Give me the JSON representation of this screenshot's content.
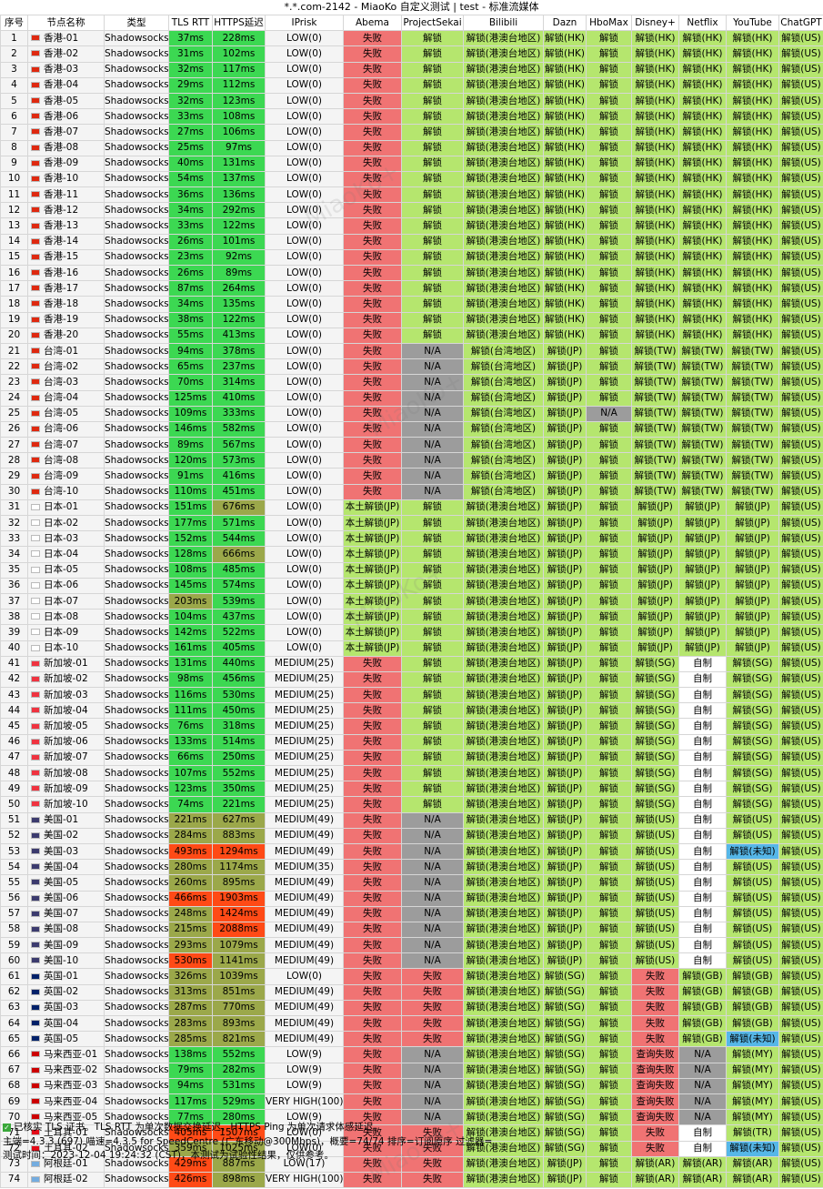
{
  "title": "*.*.com-2142 - MiaoKo 自定义测试 | test - 标准流媒体",
  "watermark": "MiaoKo+",
  "headers": [
    "序号",
    "节点名称",
    "类型",
    "TLS RTT",
    "HTTPS延迟",
    "IPrisk",
    "Abema",
    "ProjectSekai",
    "Bilibili",
    "Dazn",
    "HboMax",
    "Disney+",
    "Netflix",
    "YouTube",
    "ChatGPT"
  ],
  "colors": {
    "fail": "#f07373",
    "ok": "#b5e66e",
    "na": "#9c9c9c",
    "self": "#ffffff",
    "unknown": "#56b7e8",
    "rtt_green": "#3cd852",
    "rtt_olive": "#9ba84a",
    "rtt_red": "#ff4a16",
    "neutral": "#f4f4f4"
  },
  "flags": {
    "hk": "#de2910",
    "tw": "#de2910",
    "jp": "#ffffff",
    "sg": "#ef3340",
    "us": "#3c3b6e",
    "uk": "#012169",
    "my": "#cc0001",
    "tr": "#e30a17",
    "ar": "#74acdf"
  },
  "rows": [
    [
      "1",
      "hk",
      "香港-01",
      "Shadowsocks",
      "37ms",
      "228ms",
      "LOW(0)",
      "失败",
      "解锁",
      "解锁(港澳台地区)",
      "解锁(HK)",
      "解锁",
      "解锁(HK)",
      "解锁(HK)",
      "解锁(HK)",
      "解锁(US)"
    ],
    [
      "2",
      "hk",
      "香港-02",
      "Shadowsocks",
      "31ms",
      "102ms",
      "LOW(0)",
      "失败",
      "解锁",
      "解锁(港澳台地区)",
      "解锁(HK)",
      "解锁",
      "解锁(HK)",
      "解锁(HK)",
      "解锁(HK)",
      "解锁(US)"
    ],
    [
      "3",
      "hk",
      "香港-03",
      "Shadowsocks",
      "32ms",
      "117ms",
      "LOW(0)",
      "失败",
      "解锁",
      "解锁(港澳台地区)",
      "解锁(HK)",
      "解锁",
      "解锁(HK)",
      "解锁(HK)",
      "解锁(HK)",
      "解锁(US)"
    ],
    [
      "4",
      "hk",
      "香港-04",
      "Shadowsocks",
      "29ms",
      "112ms",
      "LOW(0)",
      "失败",
      "解锁",
      "解锁(港澳台地区)",
      "解锁(HK)",
      "解锁",
      "解锁(HK)",
      "解锁(HK)",
      "解锁(HK)",
      "解锁(US)"
    ],
    [
      "5",
      "hk",
      "香港-05",
      "Shadowsocks",
      "32ms",
      "123ms",
      "LOW(0)",
      "失败",
      "解锁",
      "解锁(港澳台地区)",
      "解锁(HK)",
      "解锁",
      "解锁(HK)",
      "解锁(HK)",
      "解锁(HK)",
      "解锁(US)"
    ],
    [
      "6",
      "hk",
      "香港-06",
      "Shadowsocks",
      "33ms",
      "108ms",
      "LOW(0)",
      "失败",
      "解锁",
      "解锁(港澳台地区)",
      "解锁(HK)",
      "解锁",
      "解锁(HK)",
      "解锁(HK)",
      "解锁(HK)",
      "解锁(US)"
    ],
    [
      "7",
      "hk",
      "香港-07",
      "Shadowsocks",
      "27ms",
      "106ms",
      "LOW(0)",
      "失败",
      "解锁",
      "解锁(港澳台地区)",
      "解锁(HK)",
      "解锁",
      "解锁(HK)",
      "解锁(HK)",
      "解锁(HK)",
      "解锁(US)"
    ],
    [
      "8",
      "hk",
      "香港-08",
      "Shadowsocks",
      "25ms",
      "97ms",
      "LOW(0)",
      "失败",
      "解锁",
      "解锁(港澳台地区)",
      "解锁(HK)",
      "解锁",
      "解锁(HK)",
      "解锁(HK)",
      "解锁(HK)",
      "解锁(US)"
    ],
    [
      "9",
      "hk",
      "香港-09",
      "Shadowsocks",
      "40ms",
      "131ms",
      "LOW(0)",
      "失败",
      "解锁",
      "解锁(港澳台地区)",
      "解锁(HK)",
      "解锁",
      "解锁(HK)",
      "解锁(HK)",
      "解锁(HK)",
      "解锁(US)"
    ],
    [
      "10",
      "hk",
      "香港-10",
      "Shadowsocks",
      "54ms",
      "137ms",
      "LOW(0)",
      "失败",
      "解锁",
      "解锁(港澳台地区)",
      "解锁(HK)",
      "解锁",
      "解锁(HK)",
      "解锁(HK)",
      "解锁(HK)",
      "解锁(US)"
    ],
    [
      "11",
      "hk",
      "香港-11",
      "Shadowsocks",
      "36ms",
      "136ms",
      "LOW(0)",
      "失败",
      "解锁",
      "解锁(港澳台地区)",
      "解锁(HK)",
      "解锁",
      "解锁(HK)",
      "解锁(HK)",
      "解锁(HK)",
      "解锁(US)"
    ],
    [
      "12",
      "hk",
      "香港-12",
      "Shadowsocks",
      "34ms",
      "292ms",
      "LOW(0)",
      "失败",
      "解锁",
      "解锁(港澳台地区)",
      "解锁(HK)",
      "解锁",
      "解锁(HK)",
      "解锁(HK)",
      "解锁(HK)",
      "解锁(US)"
    ],
    [
      "13",
      "hk",
      "香港-13",
      "Shadowsocks",
      "33ms",
      "122ms",
      "LOW(0)",
      "失败",
      "解锁",
      "解锁(港澳台地区)",
      "解锁(HK)",
      "解锁",
      "解锁(HK)",
      "解锁(HK)",
      "解锁(HK)",
      "解锁(US)"
    ],
    [
      "14",
      "hk",
      "香港-14",
      "Shadowsocks",
      "26ms",
      "101ms",
      "LOW(0)",
      "失败",
      "解锁",
      "解锁(港澳台地区)",
      "解锁(HK)",
      "解锁",
      "解锁(HK)",
      "解锁(HK)",
      "解锁(HK)",
      "解锁(US)"
    ],
    [
      "15",
      "hk",
      "香港-15",
      "Shadowsocks",
      "23ms",
      "92ms",
      "LOW(0)",
      "失败",
      "解锁",
      "解锁(港澳台地区)",
      "解锁(HK)",
      "解锁",
      "解锁(HK)",
      "解锁(HK)",
      "解锁(HK)",
      "解锁(US)"
    ],
    [
      "16",
      "hk",
      "香港-16",
      "Shadowsocks",
      "26ms",
      "89ms",
      "LOW(0)",
      "失败",
      "解锁",
      "解锁(港澳台地区)",
      "解锁(HK)",
      "解锁",
      "解锁(HK)",
      "解锁(HK)",
      "解锁(HK)",
      "解锁(US)"
    ],
    [
      "17",
      "hk",
      "香港-17",
      "Shadowsocks",
      "87ms",
      "264ms",
      "LOW(0)",
      "失败",
      "解锁",
      "解锁(港澳台地区)",
      "解锁(HK)",
      "解锁",
      "解锁(HK)",
      "解锁(HK)",
      "解锁(HK)",
      "解锁(US)"
    ],
    [
      "18",
      "hk",
      "香港-18",
      "Shadowsocks",
      "34ms",
      "135ms",
      "LOW(0)",
      "失败",
      "解锁",
      "解锁(港澳台地区)",
      "解锁(HK)",
      "解锁",
      "解锁(HK)",
      "解锁(HK)",
      "解锁(HK)",
      "解锁(US)"
    ],
    [
      "19",
      "hk",
      "香港-19",
      "Shadowsocks",
      "38ms",
      "122ms",
      "LOW(0)",
      "失败",
      "解锁",
      "解锁(港澳台地区)",
      "解锁(HK)",
      "解锁",
      "解锁(HK)",
      "解锁(HK)",
      "解锁(HK)",
      "解锁(US)"
    ],
    [
      "20",
      "hk",
      "香港-20",
      "Shadowsocks",
      "55ms",
      "413ms",
      "LOW(0)",
      "失败",
      "解锁",
      "解锁(港澳台地区)",
      "解锁(HK)",
      "解锁",
      "解锁(HK)",
      "解锁(HK)",
      "解锁(HK)",
      "解锁(US)"
    ],
    [
      "21",
      "tw",
      "台湾-01",
      "Shadowsocks",
      "94ms",
      "378ms",
      "LOW(0)",
      "失败",
      "N/A",
      "解锁(台湾地区)",
      "解锁(JP)",
      "解锁",
      "解锁(TW)",
      "解锁(TW)",
      "解锁(TW)",
      "解锁(US)"
    ],
    [
      "22",
      "tw",
      "台湾-02",
      "Shadowsocks",
      "65ms",
      "237ms",
      "LOW(0)",
      "失败",
      "N/A",
      "解锁(台湾地区)",
      "解锁(JP)",
      "解锁",
      "解锁(TW)",
      "解锁(TW)",
      "解锁(TW)",
      "解锁(US)"
    ],
    [
      "23",
      "tw",
      "台湾-03",
      "Shadowsocks",
      "70ms",
      "314ms",
      "LOW(0)",
      "失败",
      "N/A",
      "解锁(台湾地区)",
      "解锁(JP)",
      "解锁",
      "解锁(TW)",
      "解锁(TW)",
      "解锁(TW)",
      "解锁(US)"
    ],
    [
      "24",
      "tw",
      "台湾-04",
      "Shadowsocks",
      "125ms",
      "410ms",
      "LOW(0)",
      "失败",
      "N/A",
      "解锁(台湾地区)",
      "解锁(JP)",
      "解锁",
      "解锁(TW)",
      "解锁(TW)",
      "解锁(TW)",
      "解锁(US)"
    ],
    [
      "25",
      "tw",
      "台湾-05",
      "Shadowsocks",
      "109ms",
      "333ms",
      "LOW(0)",
      "失败",
      "N/A",
      "解锁(台湾地区)",
      "解锁(JP)",
      "N/A",
      "解锁(TW)",
      "解锁(TW)",
      "解锁(TW)",
      "解锁(US)"
    ],
    [
      "26",
      "tw",
      "台湾-06",
      "Shadowsocks",
      "146ms",
      "582ms",
      "LOW(0)",
      "失败",
      "N/A",
      "解锁(台湾地区)",
      "解锁(JP)",
      "解锁",
      "解锁(TW)",
      "解锁(TW)",
      "解锁(TW)",
      "解锁(US)"
    ],
    [
      "27",
      "tw",
      "台湾-07",
      "Shadowsocks",
      "89ms",
      "567ms",
      "LOW(0)",
      "失败",
      "N/A",
      "解锁(台湾地区)",
      "解锁(JP)",
      "解锁",
      "解锁(TW)",
      "解锁(TW)",
      "解锁(TW)",
      "解锁(US)"
    ],
    [
      "28",
      "tw",
      "台湾-08",
      "Shadowsocks",
      "120ms",
      "573ms",
      "LOW(0)",
      "失败",
      "N/A",
      "解锁(台湾地区)",
      "解锁(JP)",
      "解锁",
      "解锁(TW)",
      "解锁(TW)",
      "解锁(TW)",
      "解锁(US)"
    ],
    [
      "29",
      "tw",
      "台湾-09",
      "Shadowsocks",
      "91ms",
      "416ms",
      "LOW(0)",
      "失败",
      "N/A",
      "解锁(台湾地区)",
      "解锁(JP)",
      "解锁",
      "解锁(TW)",
      "解锁(TW)",
      "解锁(TW)",
      "解锁(US)"
    ],
    [
      "30",
      "tw",
      "台湾-10",
      "Shadowsocks",
      "110ms",
      "451ms",
      "LOW(0)",
      "失败",
      "N/A",
      "解锁(台湾地区)",
      "解锁(JP)",
      "解锁",
      "解锁(TW)",
      "解锁(TW)",
      "解锁(TW)",
      "解锁(US)"
    ],
    [
      "31",
      "jp",
      "日本-01",
      "Shadowsocks",
      "151ms",
      "676ms",
      "LOW(0)",
      "本土解锁(JP)",
      "解锁",
      "解锁(港澳台地区)",
      "解锁(JP)",
      "解锁",
      "解锁(JP)",
      "解锁(JP)",
      "解锁(JP)",
      "解锁(US)"
    ],
    [
      "32",
      "jp",
      "日本-02",
      "Shadowsocks",
      "177ms",
      "571ms",
      "LOW(0)",
      "本土解锁(JP)",
      "解锁",
      "解锁(港澳台地区)",
      "解锁(JP)",
      "解锁",
      "解锁(JP)",
      "解锁(JP)",
      "解锁(JP)",
      "解锁(US)"
    ],
    [
      "33",
      "jp",
      "日本-03",
      "Shadowsocks",
      "152ms",
      "544ms",
      "LOW(0)",
      "本土解锁(JP)",
      "解锁",
      "解锁(港澳台地区)",
      "解锁(JP)",
      "解锁",
      "解锁(JP)",
      "解锁(JP)",
      "解锁(JP)",
      "解锁(US)"
    ],
    [
      "34",
      "jp",
      "日本-04",
      "Shadowsocks",
      "128ms",
      "666ms",
      "LOW(0)",
      "本土解锁(JP)",
      "解锁",
      "解锁(港澳台地区)",
      "解锁(JP)",
      "解锁",
      "解锁(JP)",
      "解锁(JP)",
      "解锁(JP)",
      "解锁(US)"
    ],
    [
      "35",
      "jp",
      "日本-05",
      "Shadowsocks",
      "108ms",
      "485ms",
      "LOW(0)",
      "本土解锁(JP)",
      "解锁",
      "解锁(港澳台地区)",
      "解锁(JP)",
      "解锁",
      "解锁(JP)",
      "解锁(JP)",
      "解锁(JP)",
      "解锁(US)"
    ],
    [
      "36",
      "jp",
      "日本-06",
      "Shadowsocks",
      "145ms",
      "574ms",
      "LOW(0)",
      "本土解锁(JP)",
      "解锁",
      "解锁(港澳台地区)",
      "解锁(JP)",
      "解锁",
      "解锁(JP)",
      "解锁(JP)",
      "解锁(JP)",
      "解锁(US)"
    ],
    [
      "37",
      "jp",
      "日本-07",
      "Shadowsocks",
      "203ms",
      "539ms",
      "LOW(0)",
      "本土解锁(JP)",
      "解锁",
      "解锁(港澳台地区)",
      "解锁(JP)",
      "解锁",
      "解锁(JP)",
      "解锁(JP)",
      "解锁(JP)",
      "解锁(US)"
    ],
    [
      "38",
      "jp",
      "日本-08",
      "Shadowsocks",
      "104ms",
      "437ms",
      "LOW(0)",
      "本土解锁(JP)",
      "解锁",
      "解锁(港澳台地区)",
      "解锁(JP)",
      "解锁",
      "解锁(JP)",
      "解锁(JP)",
      "解锁(JP)",
      "解锁(US)"
    ],
    [
      "39",
      "jp",
      "日本-09",
      "Shadowsocks",
      "142ms",
      "522ms",
      "LOW(0)",
      "本土解锁(JP)",
      "解锁",
      "解锁(港澳台地区)",
      "解锁(JP)",
      "解锁",
      "解锁(JP)",
      "解锁(JP)",
      "解锁(JP)",
      "解锁(US)"
    ],
    [
      "40",
      "jp",
      "日本-10",
      "Shadowsocks",
      "161ms",
      "405ms",
      "LOW(0)",
      "本土解锁(JP)",
      "解锁",
      "解锁(港澳台地区)",
      "解锁(JP)",
      "解锁",
      "解锁(JP)",
      "解锁(JP)",
      "解锁(JP)",
      "解锁(US)"
    ],
    [
      "41",
      "sg",
      "新加坡-01",
      "Shadowsocks",
      "131ms",
      "440ms",
      "MEDIUM(25)",
      "失败",
      "解锁",
      "解锁(港澳台地区)",
      "解锁(JP)",
      "解锁",
      "解锁(SG)",
      "自制",
      "解锁(SG)",
      "解锁(US)"
    ],
    [
      "42",
      "sg",
      "新加坡-02",
      "Shadowsocks",
      "98ms",
      "456ms",
      "MEDIUM(25)",
      "失败",
      "解锁",
      "解锁(港澳台地区)",
      "解锁(JP)",
      "解锁",
      "解锁(SG)",
      "自制",
      "解锁(SG)",
      "解锁(US)"
    ],
    [
      "43",
      "sg",
      "新加坡-03",
      "Shadowsocks",
      "116ms",
      "530ms",
      "MEDIUM(25)",
      "失败",
      "解锁",
      "解锁(港澳台地区)",
      "解锁(JP)",
      "解锁",
      "解锁(SG)",
      "自制",
      "解锁(SG)",
      "解锁(US)"
    ],
    [
      "44",
      "sg",
      "新加坡-04",
      "Shadowsocks",
      "111ms",
      "450ms",
      "MEDIUM(25)",
      "失败",
      "解锁",
      "解锁(港澳台地区)",
      "解锁(JP)",
      "解锁",
      "解锁(SG)",
      "自制",
      "解锁(SG)",
      "解锁(US)"
    ],
    [
      "45",
      "sg",
      "新加坡-05",
      "Shadowsocks",
      "76ms",
      "318ms",
      "MEDIUM(25)",
      "失败",
      "解锁",
      "解锁(港澳台地区)",
      "解锁(JP)",
      "解锁",
      "解锁(SG)",
      "自制",
      "解锁(SG)",
      "解锁(US)"
    ],
    [
      "46",
      "sg",
      "新加坡-06",
      "Shadowsocks",
      "133ms",
      "514ms",
      "MEDIUM(25)",
      "失败",
      "解锁",
      "解锁(港澳台地区)",
      "解锁(JP)",
      "解锁",
      "解锁(SG)",
      "自制",
      "解锁(SG)",
      "解锁(US)"
    ],
    [
      "47",
      "sg",
      "新加坡-07",
      "Shadowsocks",
      "66ms",
      "250ms",
      "MEDIUM(25)",
      "失败",
      "解锁",
      "解锁(港澳台地区)",
      "解锁(JP)",
      "解锁",
      "解锁(SG)",
      "自制",
      "解锁(SG)",
      "解锁(US)"
    ],
    [
      "48",
      "sg",
      "新加坡-08",
      "Shadowsocks",
      "107ms",
      "552ms",
      "MEDIUM(25)",
      "失败",
      "解锁",
      "解锁(港澳台地区)",
      "解锁(JP)",
      "解锁",
      "解锁(SG)",
      "自制",
      "解锁(SG)",
      "解锁(US)"
    ],
    [
      "49",
      "sg",
      "新加坡-09",
      "Shadowsocks",
      "123ms",
      "350ms",
      "MEDIUM(25)",
      "失败",
      "解锁",
      "解锁(港澳台地区)",
      "解锁(JP)",
      "解锁",
      "解锁(SG)",
      "自制",
      "解锁(SG)",
      "解锁(US)"
    ],
    [
      "50",
      "sg",
      "新加坡-10",
      "Shadowsocks",
      "74ms",
      "221ms",
      "MEDIUM(25)",
      "失败",
      "解锁",
      "解锁(港澳台地区)",
      "解锁(JP)",
      "解锁",
      "解锁(SG)",
      "自制",
      "解锁(SG)",
      "解锁(US)"
    ],
    [
      "51",
      "us",
      "美国-01",
      "Shadowsocks",
      "221ms",
      "627ms",
      "MEDIUM(49)",
      "失败",
      "N/A",
      "解锁(港澳台地区)",
      "解锁(JP)",
      "解锁",
      "解锁(US)",
      "自制",
      "解锁(US)",
      "解锁(US)"
    ],
    [
      "52",
      "us",
      "美国-02",
      "Shadowsocks",
      "284ms",
      "883ms",
      "MEDIUM(49)",
      "失败",
      "N/A",
      "解锁(港澳台地区)",
      "解锁(JP)",
      "解锁",
      "解锁(US)",
      "自制",
      "解锁(US)",
      "解锁(US)"
    ],
    [
      "53",
      "us",
      "美国-03",
      "Shadowsocks",
      "493ms",
      "1294ms",
      "MEDIUM(49)",
      "失败",
      "N/A",
      "解锁(港澳台地区)",
      "解锁(JP)",
      "解锁",
      "解锁(US)",
      "自制",
      "解锁(未知)",
      "解锁(US)"
    ],
    [
      "54",
      "us",
      "美国-04",
      "Shadowsocks",
      "280ms",
      "1174ms",
      "MEDIUM(35)",
      "失败",
      "N/A",
      "解锁(港澳台地区)",
      "解锁(JP)",
      "解锁",
      "解锁(US)",
      "自制",
      "解锁(US)",
      "解锁(US)"
    ],
    [
      "55",
      "us",
      "美国-05",
      "Shadowsocks",
      "260ms",
      "895ms",
      "MEDIUM(49)",
      "失败",
      "N/A",
      "解锁(港澳台地区)",
      "解锁(JP)",
      "解锁",
      "解锁(US)",
      "自制",
      "解锁(US)",
      "解锁(US)"
    ],
    [
      "56",
      "us",
      "美国-06",
      "Shadowsocks",
      "466ms",
      "1903ms",
      "MEDIUM(49)",
      "失败",
      "N/A",
      "解锁(港澳台地区)",
      "解锁(JP)",
      "解锁",
      "解锁(US)",
      "自制",
      "解锁(US)",
      "解锁(US)"
    ],
    [
      "57",
      "us",
      "美国-07",
      "Shadowsocks",
      "248ms",
      "1424ms",
      "MEDIUM(49)",
      "失败",
      "N/A",
      "解锁(港澳台地区)",
      "解锁(JP)",
      "解锁",
      "解锁(US)",
      "自制",
      "解锁(US)",
      "解锁(US)"
    ],
    [
      "58",
      "us",
      "美国-08",
      "Shadowsocks",
      "215ms",
      "2088ms",
      "MEDIUM(49)",
      "失败",
      "N/A",
      "解锁(港澳台地区)",
      "解锁(JP)",
      "解锁",
      "解锁(US)",
      "自制",
      "解锁(US)",
      "解锁(US)"
    ],
    [
      "59",
      "us",
      "美国-09",
      "Shadowsocks",
      "293ms",
      "1079ms",
      "MEDIUM(49)",
      "失败",
      "N/A",
      "解锁(港澳台地区)",
      "解锁(JP)",
      "解锁",
      "解锁(US)",
      "自制",
      "解锁(US)",
      "解锁(US)"
    ],
    [
      "60",
      "us",
      "美国-10",
      "Shadowsocks",
      "530ms",
      "1141ms",
      "MEDIUM(49)",
      "失败",
      "N/A",
      "解锁(港澳台地区)",
      "解锁(JP)",
      "解锁",
      "解锁(US)",
      "自制",
      "解锁(US)",
      "解锁(US)"
    ],
    [
      "61",
      "uk",
      "英国-01",
      "Shadowsocks",
      "326ms",
      "1039ms",
      "LOW(0)",
      "失败",
      "失败",
      "解锁(港澳台地区)",
      "解锁(SG)",
      "解锁",
      "失败",
      "解锁(GB)",
      "解锁(GB)",
      "解锁(US)"
    ],
    [
      "62",
      "uk",
      "英国-02",
      "Shadowsocks",
      "313ms",
      "851ms",
      "MEDIUM(49)",
      "失败",
      "失败",
      "解锁(港澳台地区)",
      "解锁(SG)",
      "解锁",
      "失败",
      "解锁(GB)",
      "解锁(GB)",
      "解锁(US)"
    ],
    [
      "63",
      "uk",
      "英国-03",
      "Shadowsocks",
      "287ms",
      "770ms",
      "MEDIUM(49)",
      "失败",
      "失败",
      "解锁(港澳台地区)",
      "解锁(SG)",
      "解锁",
      "失败",
      "解锁(GB)",
      "解锁(GB)",
      "解锁(US)"
    ],
    [
      "64",
      "uk",
      "英国-04",
      "Shadowsocks",
      "283ms",
      "893ms",
      "MEDIUM(49)",
      "失败",
      "失败",
      "解锁(港澳台地区)",
      "解锁(SG)",
      "解锁",
      "失败",
      "解锁(GB)",
      "解锁(GB)",
      "解锁(US)"
    ],
    [
      "65",
      "uk",
      "英国-05",
      "Shadowsocks",
      "285ms",
      "821ms",
      "MEDIUM(49)",
      "失败",
      "失败",
      "解锁(港澳台地区)",
      "解锁(SG)",
      "解锁",
      "失败",
      "解锁(GB)",
      "解锁(未知)",
      "解锁(US)"
    ],
    [
      "66",
      "my",
      "马来西亚-01",
      "Shadowsocks",
      "138ms",
      "552ms",
      "LOW(9)",
      "失败",
      "N/A",
      "解锁(港澳台地区)",
      "解锁(SG)",
      "解锁",
      "查询失败",
      "N/A",
      "解锁(MY)",
      "解锁(US)"
    ],
    [
      "67",
      "my",
      "马来西亚-02",
      "Shadowsocks",
      "79ms",
      "282ms",
      "LOW(9)",
      "失败",
      "N/A",
      "解锁(港澳台地区)",
      "解锁(SG)",
      "解锁",
      "查询失败",
      "N/A",
      "解锁(MY)",
      "解锁(US)"
    ],
    [
      "68",
      "my",
      "马来西亚-03",
      "Shadowsocks",
      "94ms",
      "531ms",
      "LOW(9)",
      "失败",
      "N/A",
      "解锁(港澳台地区)",
      "解锁(SG)",
      "解锁",
      "查询失败",
      "N/A",
      "解锁(MY)",
      "解锁(US)"
    ],
    [
      "69",
      "my",
      "马来西亚-04",
      "Shadowsocks",
      "117ms",
      "529ms",
      "VERY HIGH(100)",
      "失败",
      "N/A",
      "解锁(港澳台地区)",
      "解锁(SG)",
      "解锁",
      "查询失败",
      "N/A",
      "解锁(MY)",
      "解锁(US)"
    ],
    [
      "70",
      "my",
      "马来西亚-05",
      "Shadowsocks",
      "77ms",
      "280ms",
      "LOW(9)",
      "失败",
      "N/A",
      "解锁(港澳台地区)",
      "解锁(SG)",
      "解锁",
      "查询失败",
      "N/A",
      "解锁(MY)",
      "解锁(US)"
    ],
    [
      "71",
      "tr",
      "土耳其-01",
      "Shadowsocks",
      "405ms",
      "1507ms",
      "LOW(0)",
      "失败",
      "失败",
      "解锁(港澳台地区)",
      "解锁(SG)",
      "解锁",
      "失败",
      "自制",
      "解锁(TR)",
      "解锁(US)"
    ],
    [
      "72",
      "tr",
      "土耳其-02",
      "Shadowsocks",
      "359ms",
      "1025ms",
      "LOW(0)",
      "失败",
      "失败",
      "解锁(港澳台地区)",
      "解锁(SG)",
      "解锁",
      "失败",
      "自制",
      "解锁(未知)",
      "解锁(US)"
    ],
    [
      "73",
      "ar",
      "阿根廷-01",
      "Shadowsocks",
      "429ms",
      "887ms",
      "LOW(17)",
      "失败",
      "失败",
      "解锁(港澳台地区)",
      "解锁(JP)",
      "解锁",
      "解锁(AR)",
      "解锁(AR)",
      "解锁(AR)",
      "解锁(US)"
    ],
    [
      "74",
      "ar",
      "阿根廷-02",
      "Shadowsocks",
      "426ms",
      "898ms",
      "VERY HIGH(100)",
      "失败",
      "失败",
      "解锁(港澳台地区)",
      "解锁(JP)",
      "解锁",
      "解锁(AR)",
      "解锁(AR)",
      "解锁(AR)",
      "解锁(US)"
    ]
  ],
  "footer": {
    "line1": "已核实 TLS 证书。TLS RTT 为单次数据交换延迟，HTTPS Ping 为单次请求体感延迟。",
    "line2": "主端=4.3.3 (697) 喵速=4.3.5 for SpeedCentre (广东移动@300Mbps)，概要=74/74 排序=订阅原序 过滤器=",
    "line3": "测试时间：2023-12-04 19:24:32 (CST)，本测试为试验性结果，仅供参考。"
  }
}
